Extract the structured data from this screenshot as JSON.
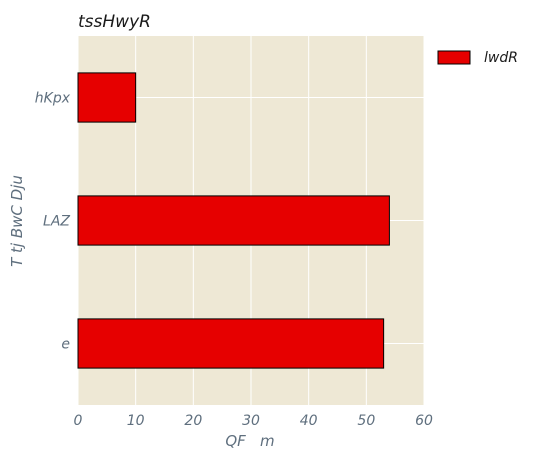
{
  "chart_data": {
    "type": "bar",
    "orientation": "horizontal",
    "title": "tssHwyR",
    "xlabel": "QF   m",
    "ylabel": "T tj BwC Dju",
    "categories": [
      "e",
      "LAZ",
      "hKpx"
    ],
    "series": [
      {
        "name": "lwdR",
        "values": [
          53,
          54,
          10
        ]
      }
    ],
    "xlim": [
      0,
      60
    ],
    "xticks": [
      "0",
      "10",
      "20",
      "30",
      "40",
      "50",
      "60"
    ],
    "grid": true,
    "legend_position": "outside-top-right",
    "colors": {
      "bar": "#e60000",
      "bar_edge": "#000000",
      "plot_background": "#eee8d5",
      "grid": "#ffffff"
    }
  }
}
